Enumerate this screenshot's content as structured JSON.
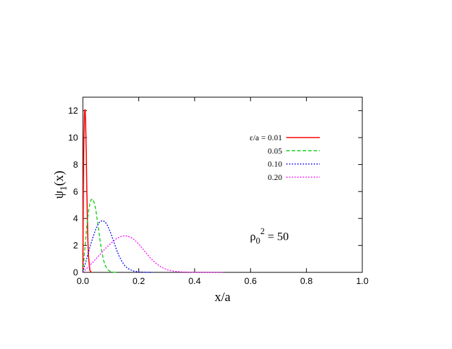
{
  "chart_data": {
    "type": "line",
    "xlabel": "x/a",
    "ylabel": "ψ1(x)",
    "xlim": [
      0,
      1.0
    ],
    "ylim": [
      0,
      13
    ],
    "xticks": [
      "0.0",
      "0.2",
      "0.4",
      "0.6",
      "0.8",
      "1.0"
    ],
    "yticks": [
      "0",
      "2",
      "4",
      "6",
      "8",
      "10",
      "12"
    ],
    "grid": false,
    "legend_position": "top-right",
    "legend_prefix": "ε/a = ",
    "annotation": {
      "text": "ρ0² = 50"
    },
    "series": [
      {
        "name": "0.01",
        "color": "#ff0000",
        "dash": "solid",
        "x": [
          0,
          0.001,
          0.002,
          0.004,
          0.006,
          0.008,
          0.01,
          0.012,
          0.014,
          0.016,
          0.018,
          0.02,
          0.025,
          0.03
        ],
        "y": [
          0,
          3.1,
          6.2,
          10.2,
          11.9,
          12.1,
          11.0,
          8.9,
          6.4,
          4.2,
          2.4,
          1.2,
          0.15,
          0
        ]
      },
      {
        "name": "0.05",
        "color": "#00cc00",
        "dash": "dashed",
        "x": [
          0,
          0.005,
          0.01,
          0.015,
          0.02,
          0.025,
          0.03,
          0.035,
          0.04,
          0.045,
          0.05,
          0.055,
          0.06,
          0.065,
          0.07,
          0.075,
          0.08,
          0.09,
          0.1,
          0.11,
          0.12
        ],
        "y": [
          0,
          1.2,
          2.5,
          3.6,
          4.5,
          5.1,
          5.4,
          5.45,
          5.2,
          4.8,
          4.1,
          3.4,
          2.6,
          1.9,
          1.3,
          0.85,
          0.5,
          0.18,
          0.05,
          0.01,
          0
        ]
      },
      {
        "name": "0.10",
        "color": "#0000ff",
        "dash": "dotted",
        "x": [
          0,
          0.01,
          0.02,
          0.03,
          0.04,
          0.05,
          0.06,
          0.07,
          0.08,
          0.09,
          0.1,
          0.11,
          0.12,
          0.13,
          0.14,
          0.15,
          0.16,
          0.18,
          0.2,
          0.22,
          0.25
        ],
        "y": [
          0,
          0.75,
          1.5,
          2.2,
          2.85,
          3.4,
          3.75,
          3.85,
          3.75,
          3.4,
          2.9,
          2.3,
          1.7,
          1.2,
          0.8,
          0.5,
          0.3,
          0.1,
          0.03,
          0.01,
          0
        ]
      },
      {
        "name": "0.20",
        "color": "#ff00ff",
        "dash": "dotted",
        "x": [
          0,
          0.02,
          0.04,
          0.06,
          0.08,
          0.1,
          0.12,
          0.14,
          0.16,
          0.18,
          0.2,
          0.22,
          0.24,
          0.26,
          0.28,
          0.3,
          0.32,
          0.35,
          0.4,
          0.45,
          0.5
        ],
        "y": [
          0,
          0.4,
          0.85,
          1.3,
          1.75,
          2.15,
          2.5,
          2.7,
          2.7,
          2.5,
          2.1,
          1.6,
          1.1,
          0.7,
          0.4,
          0.2,
          0.1,
          0.03,
          0.005,
          0,
          0
        ]
      }
    ]
  }
}
